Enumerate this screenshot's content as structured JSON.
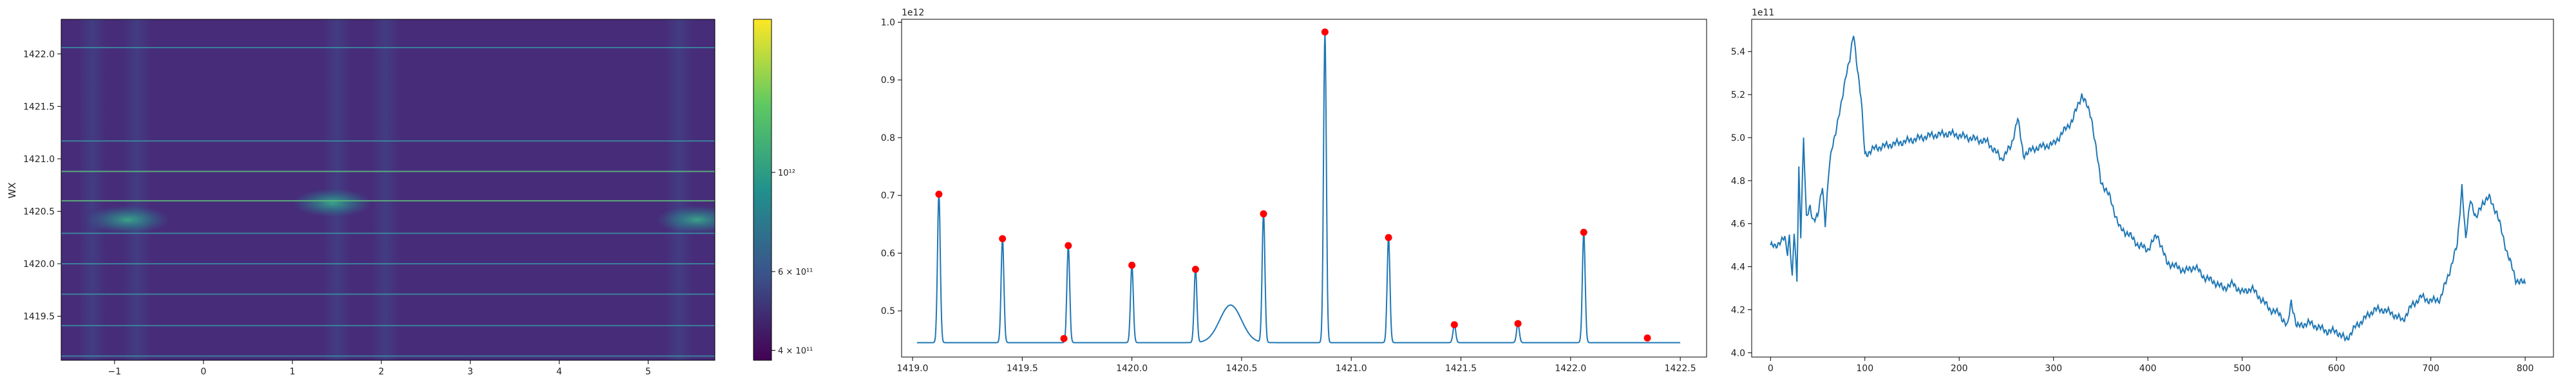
{
  "chart_data": [
    {
      "type": "heatmap",
      "title": "",
      "xlabel": "",
      "ylabel": "WX",
      "xlim": [
        -1.6,
        5.75
      ],
      "ylim": [
        1419.08,
        1422.33
      ],
      "xticks": [
        -1,
        0,
        1,
        2,
        3,
        4,
        5
      ],
      "xtick_labels": [
        "−1",
        "0",
        "1",
        "2",
        "3",
        "4",
        "5"
      ],
      "yticks": [
        1419.5,
        1420.0,
        1420.5,
        1421.0,
        1421.5,
        1422.0
      ],
      "ytick_labels": [
        "1419.5",
        "1420.0",
        "1420.5",
        "1421.0",
        "1421.5",
        "1422.0"
      ],
      "colormap": "viridis",
      "colorbar": {
        "scale": "log",
        "range": [
          380000000000.0,
          2200000000000.0
        ],
        "ticks": [
          400000000000.0,
          600000000000.0,
          1000000000000.0
        ],
        "tick_labels": [
          "4 × 10¹¹",
          "6 × 10¹¹",
          "10¹²"
        ]
      },
      "horizontal_lines": [
        {
          "y": 1422.06,
          "color": "#3a8fa0"
        },
        {
          "y": 1421.17,
          "color": "#3a8fa0"
        },
        {
          "y": 1420.88,
          "color": "#5fbf7a"
        },
        {
          "y": 1420.6,
          "color": "#5fbf7a"
        },
        {
          "y": 1420.29,
          "color": "#3a8fa0"
        },
        {
          "y": 1420.0,
          "color": "#3a8fa0"
        },
        {
          "y": 1419.71,
          "color": "#3a8fa0"
        },
        {
          "y": 1419.41,
          "color": "#3a8fa0"
        },
        {
          "y": 1419.12,
          "color": "#3a8fa0"
        }
      ],
      "hotspots": [
        {
          "x": -0.85,
          "y": 1420.42,
          "intensity": 1200000000000.0
        },
        {
          "x": 1.45,
          "y": 1420.58,
          "intensity": 1000000000000.0
        },
        {
          "x": 5.55,
          "y": 1420.42,
          "intensity": 1100000000000.0
        }
      ],
      "vertical_bands_x": [
        -1.25,
        -0.75,
        1.5,
        2.05,
        5.35
      ]
    },
    {
      "type": "line",
      "title": "",
      "xlabel": "",
      "ylabel": "",
      "y_offset_label": "1e12",
      "xlim": [
        1418.95,
        1422.62
      ],
      "ylim": [
        0.42,
        1.005
      ],
      "xticks": [
        1419.0,
        1419.5,
        1420.0,
        1420.5,
        1421.0,
        1421.5,
        1422.0,
        1422.5
      ],
      "xtick_labels": [
        "1419.0",
        "1419.5",
        "1420.0",
        "1420.5",
        "1421.0",
        "1421.5",
        "1422.0",
        "1422.5"
      ],
      "yticks": [
        0.5,
        0.6,
        0.7,
        0.8,
        0.9,
        1.0
      ],
      "ytick_labels": [
        "0.5",
        "0.6",
        "0.7",
        "0.8",
        "0.9",
        "1.0"
      ],
      "line_color": "#1f77b4",
      "marker_color": "#ff0000",
      "baseline": 0.445,
      "series_range_x": [
        1419.02,
        1422.5
      ],
      "bump": {
        "x": 1420.45,
        "height": 0.51
      },
      "peaks": [
        {
          "x": 1419.12,
          "y": 0.702
        },
        {
          "x": 1419.41,
          "y": 0.625
        },
        {
          "x": 1419.71,
          "y": 0.613
        },
        {
          "x": 1420.0,
          "y": 0.579
        },
        {
          "x": 1420.29,
          "y": 0.572
        },
        {
          "x": 1420.6,
          "y": 0.668
        },
        {
          "x": 1420.88,
          "y": 0.983
        },
        {
          "x": 1421.17,
          "y": 0.627
        },
        {
          "x": 1421.47,
          "y": 0.476
        },
        {
          "x": 1421.76,
          "y": 0.478
        },
        {
          "x": 1422.06,
          "y": 0.636
        }
      ],
      "extra_markers": [
        {
          "x": 1419.69,
          "y": 0.452
        },
        {
          "x": 1422.35,
          "y": 0.453
        }
      ]
    },
    {
      "type": "line",
      "title": "",
      "xlabel": "",
      "ylabel": "",
      "y_offset_label": "1e11",
      "xlim": [
        -20,
        830
      ],
      "ylim": [
        3.98,
        5.55
      ],
      "xticks": [
        0,
        100,
        200,
        300,
        400,
        500,
        600,
        700,
        800
      ],
      "xtick_labels": [
        "0",
        "100",
        "200",
        "300",
        "400",
        "500",
        "600",
        "700",
        "800"
      ],
      "yticks": [
        4.0,
        4.2,
        4.4,
        4.6,
        4.8,
        5.0,
        5.2,
        5.4
      ],
      "ytick_labels": [
        "4.0",
        "4.2",
        "4.4",
        "4.6",
        "4.8",
        "5.0",
        "5.2",
        "5.4"
      ],
      "line_color": "#1f77b4",
      "keypoints": [
        [
          0,
          4.5
        ],
        [
          5,
          4.49
        ],
        [
          10,
          4.52
        ],
        [
          15,
          4.53
        ],
        [
          18,
          4.46
        ],
        [
          20,
          4.55
        ],
        [
          23,
          4.35
        ],
        [
          25,
          4.56
        ],
        [
          28,
          4.33
        ],
        [
          30,
          4.86
        ],
        [
          32,
          4.55
        ],
        [
          35,
          5.0
        ],
        [
          38,
          4.62
        ],
        [
          42,
          4.68
        ],
        [
          45,
          4.62
        ],
        [
          50,
          4.63
        ],
        [
          55,
          4.78
        ],
        [
          58,
          4.6
        ],
        [
          62,
          4.85
        ],
        [
          65,
          4.95
        ],
        [
          70,
          5.05
        ],
        [
          75,
          5.15
        ],
        [
          80,
          5.3
        ],
        [
          84,
          5.36
        ],
        [
          88,
          5.48
        ],
        [
          92,
          5.33
        ],
        [
          96,
          5.18
        ],
        [
          100,
          4.92
        ],
        [
          110,
          4.95
        ],
        [
          130,
          4.97
        ],
        [
          150,
          4.99
        ],
        [
          170,
          5.01
        ],
        [
          190,
          5.02
        ],
        [
          210,
          5.0
        ],
        [
          230,
          4.98
        ],
        [
          245,
          4.9
        ],
        [
          255,
          4.96
        ],
        [
          262,
          5.09
        ],
        [
          268,
          4.92
        ],
        [
          280,
          4.95
        ],
        [
          300,
          4.97
        ],
        [
          320,
          5.08
        ],
        [
          330,
          5.2
        ],
        [
          340,
          5.1
        ],
        [
          350,
          4.8
        ],
        [
          360,
          4.72
        ],
        [
          370,
          4.58
        ],
        [
          380,
          4.55
        ],
        [
          390,
          4.5
        ],
        [
          400,
          4.48
        ],
        [
          410,
          4.55
        ],
        [
          420,
          4.42
        ],
        [
          430,
          4.4
        ],
        [
          440,
          4.38
        ],
        [
          450,
          4.4
        ],
        [
          460,
          4.35
        ],
        [
          470,
          4.33
        ],
        [
          480,
          4.3
        ],
        [
          490,
          4.32
        ],
        [
          500,
          4.28
        ],
        [
          510,
          4.3
        ],
        [
          520,
          4.25
        ],
        [
          530,
          4.2
        ],
        [
          540,
          4.18
        ],
        [
          548,
          4.12
        ],
        [
          552,
          4.24
        ],
        [
          558,
          4.12
        ],
        [
          570,
          4.14
        ],
        [
          580,
          4.12
        ],
        [
          590,
          4.1
        ],
        [
          600,
          4.1
        ],
        [
          610,
          4.06
        ],
        [
          620,
          4.12
        ],
        [
          630,
          4.16
        ],
        [
          640,
          4.2
        ],
        [
          650,
          4.2
        ],
        [
          660,
          4.18
        ],
        [
          670,
          4.15
        ],
        [
          680,
          4.22
        ],
        [
          690,
          4.26
        ],
        [
          700,
          4.24
        ],
        [
          710,
          4.25
        ],
        [
          720,
          4.38
        ],
        [
          728,
          4.5
        ],
        [
          733,
          4.78
        ],
        [
          737,
          4.52
        ],
        [
          742,
          4.72
        ],
        [
          748,
          4.62
        ],
        [
          755,
          4.7
        ],
        [
          762,
          4.72
        ],
        [
          770,
          4.65
        ],
        [
          780,
          4.48
        ],
        [
          790,
          4.34
        ],
        [
          800,
          4.32
        ]
      ]
    }
  ]
}
